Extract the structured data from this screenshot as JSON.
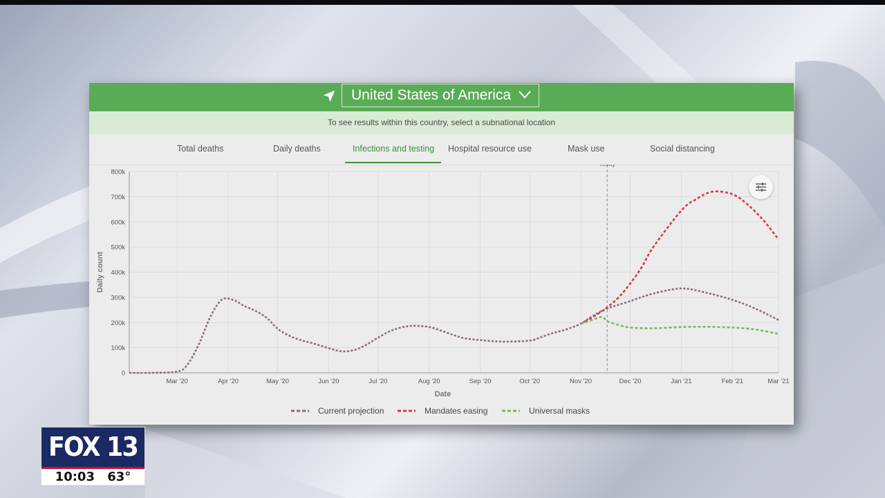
{
  "location": {
    "selected": "United States of America"
  },
  "subnational_note": "To see results within this country, select a subnational location",
  "tabs": [
    {
      "label": "Total deaths",
      "active": false
    },
    {
      "label": "Daily deaths",
      "active": false
    },
    {
      "label": "Infections and testing",
      "active": true
    },
    {
      "label": "Hospital resource use",
      "active": false
    },
    {
      "label": "Mask use",
      "active": false
    },
    {
      "label": "Social distancing",
      "active": false
    }
  ],
  "colors": {
    "header_green": "#5aab56",
    "current": "#8a6a78",
    "mandates": "#d9363e",
    "masks": "#7bb85a"
  },
  "chart_data": {
    "type": "line",
    "xlabel": "Date",
    "ylabel": "Daily count",
    "ylim": [
      0,
      800000
    ],
    "yticks": [
      "0",
      "100k",
      "200k",
      "300k",
      "400k",
      "500k",
      "600k",
      "700k",
      "800k"
    ],
    "xticks": [
      {
        "x": "2020-03-01",
        "label": "Mar '20"
      },
      {
        "x": "2020-04-01",
        "label": "Apr '20"
      },
      {
        "x": "2020-05-01",
        "label": "May '20"
      },
      {
        "x": "2020-06-01",
        "label": "Jun '20"
      },
      {
        "x": "2020-07-01",
        "label": "Jul '20"
      },
      {
        "x": "2020-08-01",
        "label": "Aug '20"
      },
      {
        "x": "2020-09-01",
        "label": "Sep '20"
      },
      {
        "x": "2020-10-01",
        "label": "Oct '20"
      },
      {
        "x": "2020-11-01",
        "label": "Nov '20"
      },
      {
        "x": "2020-12-01",
        "label": "Dec '20"
      },
      {
        "x": "2021-01-01",
        "label": "Jan '21"
      },
      {
        "x": "2021-02-01",
        "label": "Feb '21"
      },
      {
        "x": "2021-03-01",
        "label": "Mar '21"
      }
    ],
    "xlim": [
      "2020-02-01",
      "2021-03-01"
    ],
    "today": {
      "x": "2020-11-17",
      "label": "Today"
    },
    "legend_position": "bottom",
    "series": [
      {
        "name": "Current projection",
        "style": "dotted",
        "points": [
          [
            "2020-02-01",
            0
          ],
          [
            "2020-02-15",
            0
          ],
          [
            "2020-03-01",
            5000
          ],
          [
            "2020-03-07",
            30000
          ],
          [
            "2020-03-14",
            110000
          ],
          [
            "2020-03-21",
            220000
          ],
          [
            "2020-03-28",
            290000
          ],
          [
            "2020-04-04",
            290000
          ],
          [
            "2020-04-11",
            265000
          ],
          [
            "2020-04-18",
            245000
          ],
          [
            "2020-04-25",
            215000
          ],
          [
            "2020-05-01",
            175000
          ],
          [
            "2020-05-08",
            148000
          ],
          [
            "2020-05-15",
            130000
          ],
          [
            "2020-05-22",
            118000
          ],
          [
            "2020-06-01",
            98000
          ],
          [
            "2020-06-08",
            86000
          ],
          [
            "2020-06-15",
            88000
          ],
          [
            "2020-06-22",
            105000
          ],
          [
            "2020-07-01",
            140000
          ],
          [
            "2020-07-08",
            165000
          ],
          [
            "2020-07-15",
            180000
          ],
          [
            "2020-07-22",
            187000
          ],
          [
            "2020-08-01",
            182000
          ],
          [
            "2020-08-08",
            168000
          ],
          [
            "2020-08-15",
            152000
          ],
          [
            "2020-08-22",
            138000
          ],
          [
            "2020-09-01",
            130000
          ],
          [
            "2020-09-15",
            124000
          ],
          [
            "2020-10-01",
            128000
          ],
          [
            "2020-10-08",
            142000
          ],
          [
            "2020-10-15",
            158000
          ],
          [
            "2020-10-22",
            170000
          ],
          [
            "2020-11-01",
            195000
          ],
          [
            "2020-11-08",
            225000
          ],
          [
            "2020-11-17",
            255000
          ],
          [
            "2020-12-01",
            285000
          ],
          [
            "2020-12-15",
            315000
          ],
          [
            "2021-01-01",
            335000
          ],
          [
            "2021-01-15",
            320000
          ],
          [
            "2021-02-01",
            290000
          ],
          [
            "2021-02-15",
            255000
          ],
          [
            "2021-03-01",
            210000
          ]
        ]
      },
      {
        "name": "Mandates easing",
        "style": "dashed",
        "points": [
          [
            "2020-11-01",
            195000
          ],
          [
            "2020-11-08",
            220000
          ],
          [
            "2020-11-17",
            260000
          ],
          [
            "2020-11-24",
            300000
          ],
          [
            "2020-12-01",
            355000
          ],
          [
            "2020-12-08",
            420000
          ],
          [
            "2020-12-15",
            500000
          ],
          [
            "2021-01-01",
            645000
          ],
          [
            "2021-01-10",
            690000
          ],
          [
            "2021-01-20",
            720000
          ],
          [
            "2021-02-01",
            710000
          ],
          [
            "2021-02-10",
            670000
          ],
          [
            "2021-02-20",
            605000
          ],
          [
            "2021-03-01",
            530000
          ]
        ]
      },
      {
        "name": "Universal masks",
        "style": "dashed",
        "points": [
          [
            "2020-11-01",
            195000
          ],
          [
            "2020-11-08",
            210000
          ],
          [
            "2020-11-14",
            222000
          ],
          [
            "2020-11-17",
            205000
          ],
          [
            "2020-11-24",
            190000
          ],
          [
            "2020-12-01",
            180000
          ],
          [
            "2020-12-15",
            177000
          ],
          [
            "2021-01-01",
            182000
          ],
          [
            "2021-01-15",
            183000
          ],
          [
            "2021-02-01",
            180000
          ],
          [
            "2021-02-15",
            172000
          ],
          [
            "2021-03-01",
            155000
          ]
        ]
      }
    ]
  },
  "station": {
    "logo_text": "FOX 13",
    "time": "10:03",
    "temperature": "63°"
  }
}
